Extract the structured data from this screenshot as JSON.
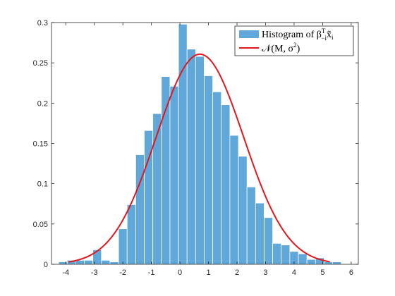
{
  "chart_data": {
    "type": "bar",
    "xlim": [
      -4.5,
      6.25
    ],
    "ylim": [
      0,
      0.3
    ],
    "xticks": [
      -4,
      -3,
      -2,
      -1,
      0,
      1,
      2,
      3,
      4,
      5,
      6
    ],
    "yticks": [
      0,
      0.05,
      0.1,
      0.15,
      0.2,
      0.25,
      0.3
    ],
    "bin_width": 0.3,
    "bin_centers": [
      -4.1,
      -3.8,
      -3.5,
      -3.2,
      -2.9,
      -2.6,
      -2.3,
      -2.0,
      -1.7,
      -1.4,
      -1.1,
      -0.8,
      -0.5,
      -0.2,
      0.1,
      0.4,
      0.7,
      1.0,
      1.3,
      1.6,
      1.9,
      2.2,
      2.5,
      2.8,
      3.1,
      3.4,
      3.7,
      4.0,
      4.3,
      4.6,
      4.9,
      5.2,
      5.5
    ],
    "values": [
      0.003,
      0.005,
      0.005,
      0.005,
      0.018,
      0.005,
      0.003,
      0.044,
      0.074,
      0.136,
      0.166,
      0.187,
      0.233,
      0.221,
      0.298,
      0.267,
      0.258,
      0.234,
      0.214,
      0.198,
      0.16,
      0.134,
      0.096,
      0.076,
      0.058,
      0.026,
      0.024,
      0.016,
      0.013,
      0.006,
      0.008,
      0.003,
      0.003
    ],
    "bar_color": "#5fa8d9",
    "curve": {
      "mean": 0.7,
      "sigma": 1.53,
      "x_range": [
        -3.9,
        5.25
      ],
      "color": "#e4161d"
    },
    "legend": {
      "position": "top-right",
      "entries": [
        {
          "label": "Histogram of β",
          "sup": "T",
          "sub": "−i",
          "tail": "x̃",
          "tail_sub": "i"
        },
        {
          "label": "𝒩(M, σ",
          "sup": "2",
          "tail": ")"
        }
      ]
    },
    "grid": false
  }
}
